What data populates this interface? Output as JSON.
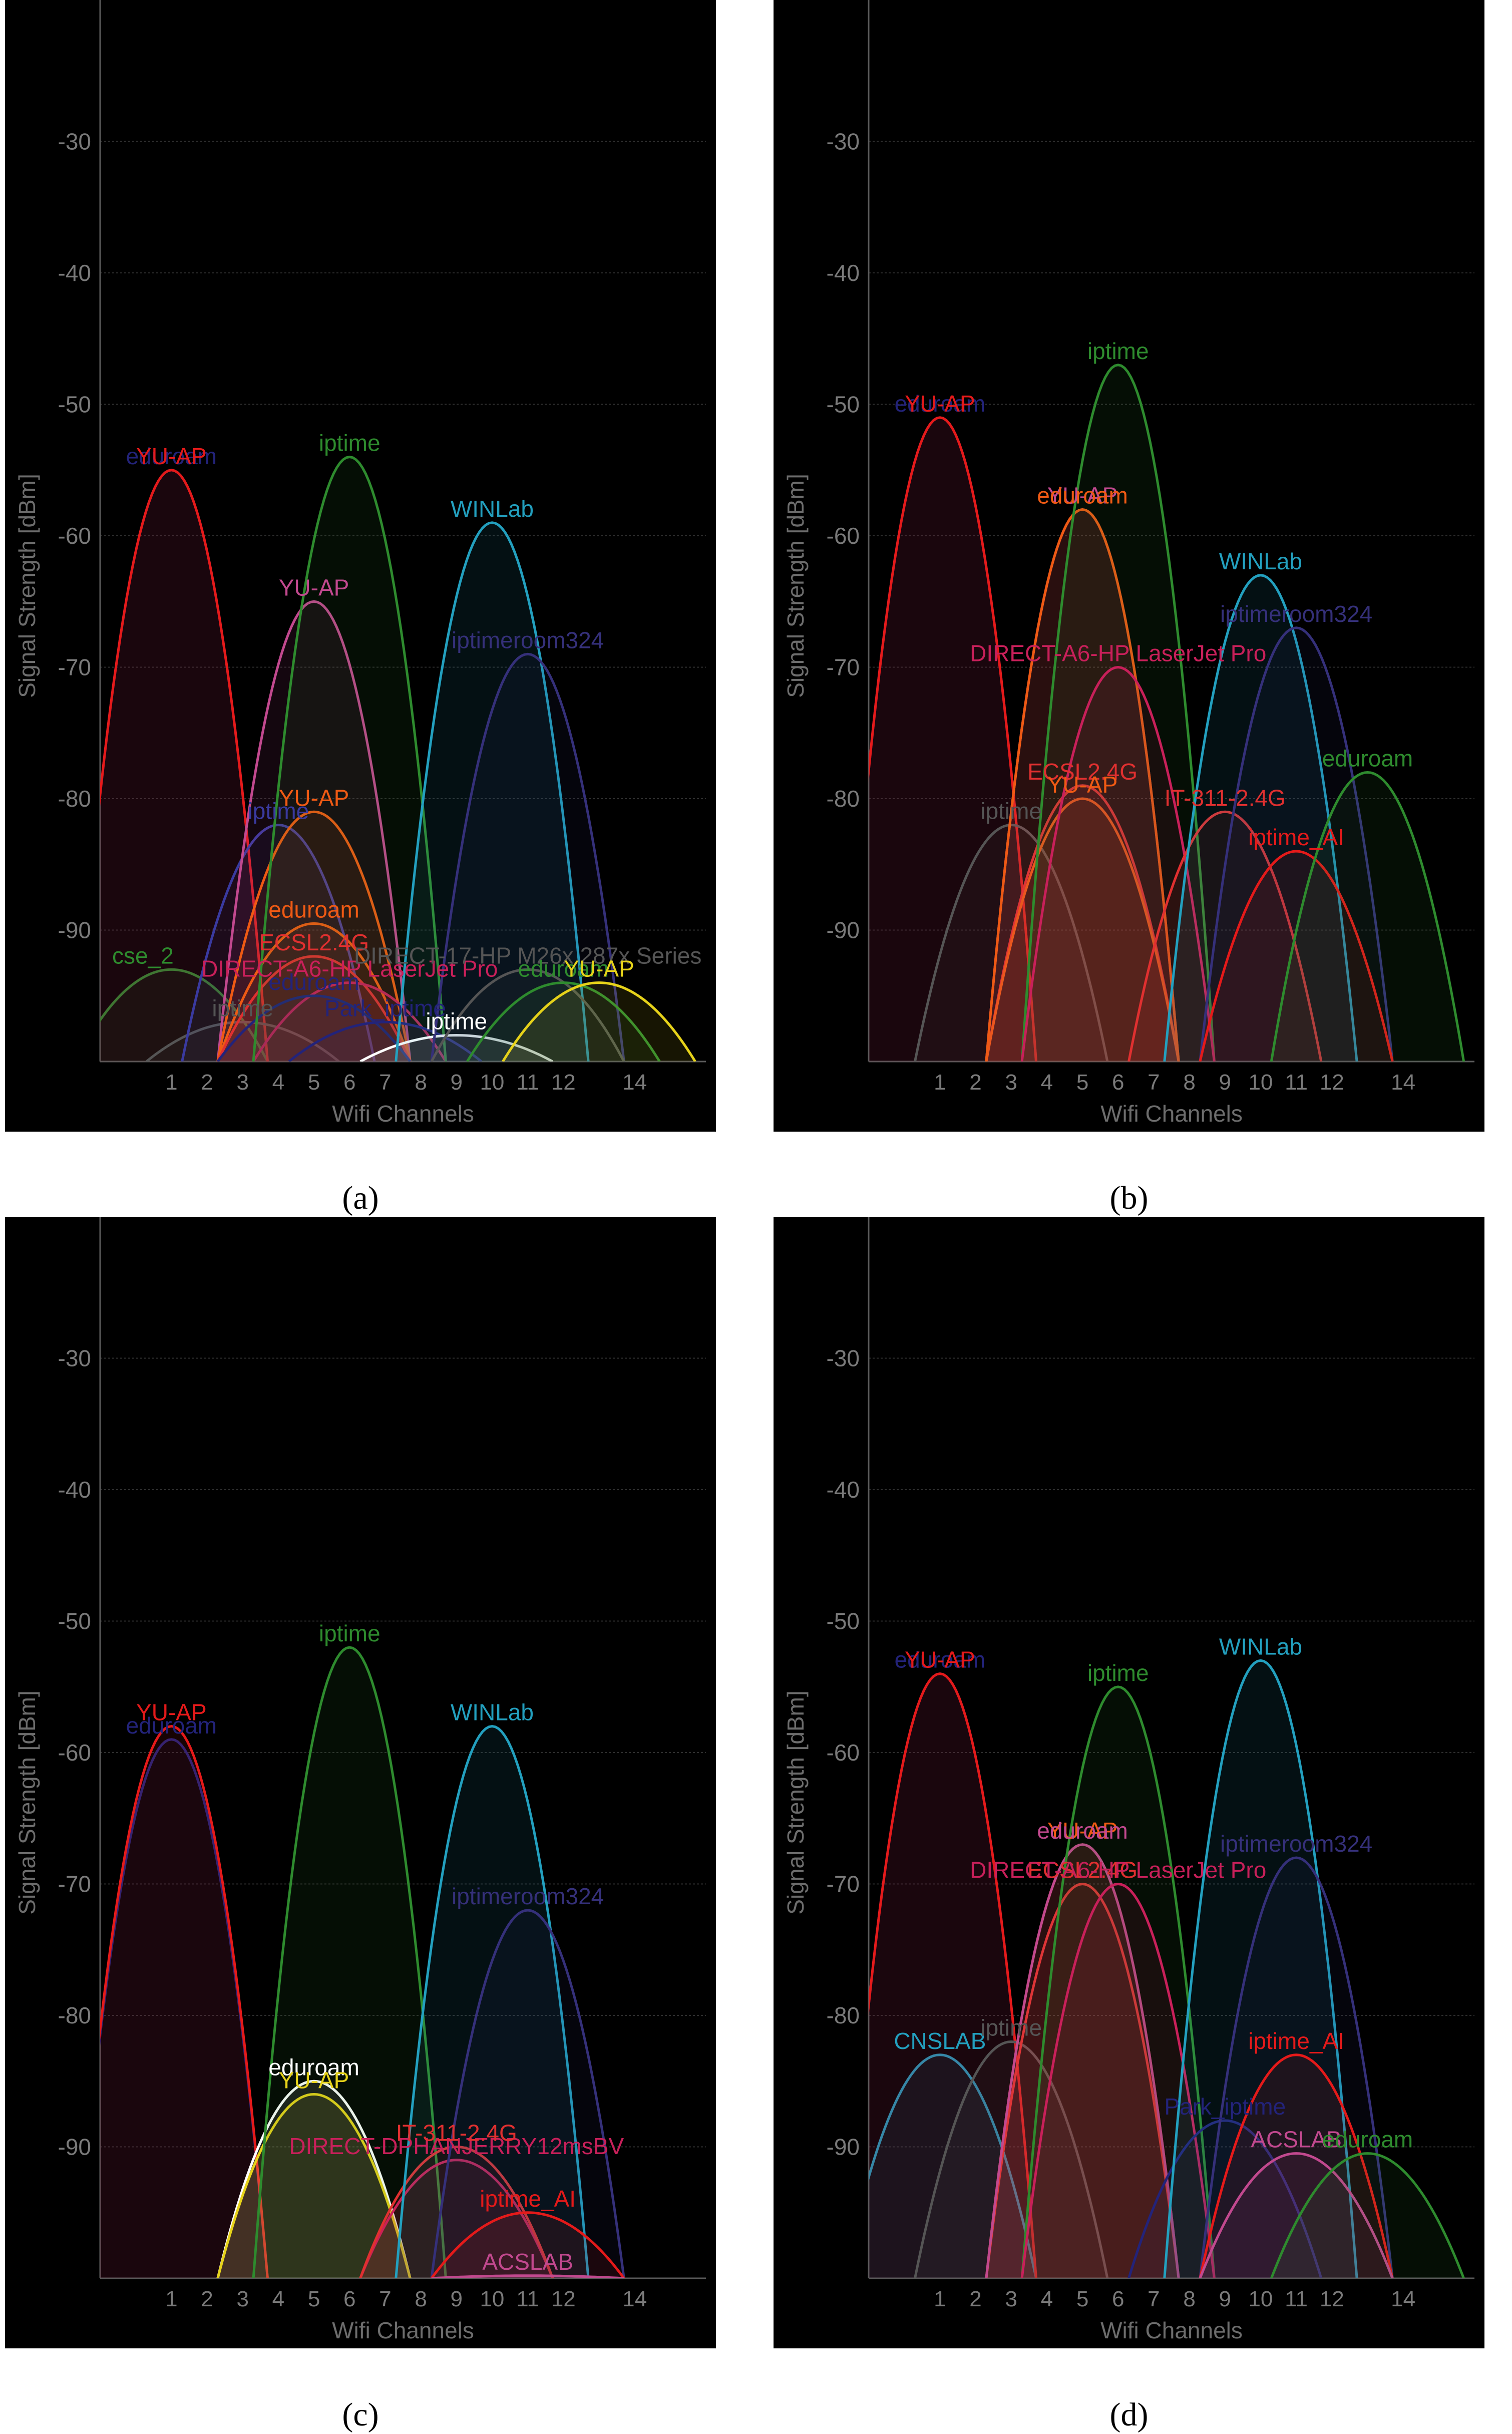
{
  "chart_data": [
    {
      "type": "area",
      "panel_label": "(a)",
      "xlabel": "Wifi Channels",
      "ylabel": "Signal Strength [dBm]",
      "x_ticks": [
        1,
        2,
        3,
        4,
        5,
        6,
        7,
        8,
        9,
        10,
        11,
        12,
        14
      ],
      "y_ticks": [
        -30,
        -40,
        -50,
        -60,
        -70,
        -80,
        -90
      ],
      "xlim": [
        -1,
        16
      ],
      "ylim": [
        -100,
        -20
      ],
      "grid": true,
      "series": [
        {
          "name": "cse_2",
          "channel": 1,
          "dbm": -93,
          "color": "#2e8b2e",
          "label_dx": -0.8,
          "label_dy": 2
        },
        {
          "name": "eduroam",
          "channel": 1,
          "dbm": -55,
          "color": "#23237a",
          "label_dy": 1
        },
        {
          "name": "YU-AP",
          "channel": 1,
          "dbm": -55,
          "color": "#e51a1a",
          "label_dy": 0
        },
        {
          "name": "iptime",
          "channel": 3,
          "dbm": -97,
          "color": "#555555",
          "label_dy": 2
        },
        {
          "name": "iptime",
          "channel": 4,
          "dbm": -82,
          "color": "#3a3aa0",
          "label_dy": 1
        },
        {
          "name": "YU-AP",
          "channel": 5,
          "dbm": -65,
          "color": "#c2498f",
          "label_dy": 1
        },
        {
          "name": "YU-AP",
          "channel": 5,
          "dbm": -81,
          "color": "#ef5a14",
          "label_dy": 1
        },
        {
          "name": "eduroam",
          "channel": 5,
          "dbm": -89.5,
          "color": "#ef5a14",
          "label_dy": 1
        },
        {
          "name": "ECSL2.4G",
          "channel": 5,
          "dbm": -92,
          "color": "#e03030",
          "label_dy": 1
        },
        {
          "name": "DIRECT-A6-HP LaserJet Pro",
          "channel": 6,
          "dbm": -94,
          "color": "#c8205a",
          "label_dy": 2
        },
        {
          "name": "eduroam",
          "channel": 5,
          "dbm": -95,
          "color": "#23237a",
          "label_dy": 2
        },
        {
          "name": "iptime",
          "channel": 6,
          "dbm": -54,
          "color": "#2e8b2e",
          "label_dy": 1
        },
        {
          "name": "Park_iptime",
          "channel": 7,
          "dbm": -97,
          "color": "#23237a",
          "label_dy": 3
        },
        {
          "name": "iptime",
          "channel": 9,
          "dbm": -98,
          "color": "#ffffff",
          "label_dy": 1
        },
        {
          "name": "WINLab",
          "channel": 10,
          "dbm": -59,
          "color": "#23a0bf",
          "label_dy": 1
        },
        {
          "name": "iptimeroom324",
          "channel": 11,
          "dbm": -69,
          "color": "#35307a",
          "label_dy": 1
        },
        {
          "name": "DIRECT-17-HP M26x 287x Series",
          "channel": 11,
          "dbm": -93,
          "color": "#555555",
          "label_dy": 2
        },
        {
          "name": "eduroam",
          "channel": 12,
          "dbm": -94,
          "color": "#2e8b2e",
          "label_dy": 1
        },
        {
          "name": "YU-AP",
          "channel": 13,
          "dbm": -94,
          "color": "#e6d21a",
          "label_dy": 1
        }
      ]
    },
    {
      "type": "area",
      "panel_label": "(b)",
      "xlabel": "Wifi Channels",
      "ylabel": "Signal Strength [dBm]",
      "x_ticks": [
        1,
        2,
        3,
        4,
        5,
        6,
        7,
        8,
        9,
        10,
        11,
        12,
        14
      ],
      "y_ticks": [
        -30,
        -40,
        -50,
        -60,
        -70,
        -80,
        -90
      ],
      "xlim": [
        -1,
        16
      ],
      "ylim": [
        -100,
        -20
      ],
      "grid": true,
      "series": [
        {
          "name": "eduroam",
          "channel": 1,
          "dbm": -51,
          "color": "#23237a",
          "label_dy": 1
        },
        {
          "name": "YU-AP",
          "channel": 1,
          "dbm": -51,
          "color": "#e51a1a",
          "label_dy": 0
        },
        {
          "name": "iptime",
          "channel": 3,
          "dbm": -82,
          "color": "#555555",
          "label_dy": 1
        },
        {
          "name": "ECSL2.4G",
          "channel": 5,
          "dbm": -79,
          "color": "#e03030",
          "label_dy": 1
        },
        {
          "name": "YU-AP",
          "channel": 5,
          "dbm": -80,
          "color": "#ef5a14",
          "label_dy": 1
        },
        {
          "name": "YU-AP",
          "channel": 5,
          "dbm": -58,
          "color": "#c2498f",
          "label_dy": 1
        },
        {
          "name": "eduroam",
          "channel": 5,
          "dbm": -58,
          "color": "#ef5a14",
          "label_dy": 1
        },
        {
          "name": "iptime",
          "channel": 6,
          "dbm": -47,
          "color": "#2e8b2e",
          "label_dy": 1
        },
        {
          "name": "DIRECT-A6-HP LaserJet Pro",
          "channel": 6,
          "dbm": -70,
          "color": "#c8205a",
          "label_dy": 1
        },
        {
          "name": "IT-311-2.4G",
          "channel": 9,
          "dbm": -81,
          "color": "#e03030",
          "label_dy": 1
        },
        {
          "name": "WINLab",
          "channel": 10,
          "dbm": -63,
          "color": "#23a0bf",
          "label_dy": 1
        },
        {
          "name": "iptimeroom324",
          "channel": 11,
          "dbm": -67,
          "color": "#35307a",
          "label_dy": 1
        },
        {
          "name": "iptime_AI",
          "channel": 11,
          "dbm": -84,
          "color": "#e51a1a",
          "label_dy": 1
        },
        {
          "name": "eduroam",
          "channel": 13,
          "dbm": -78,
          "color": "#2e8b2e",
          "label_dy": 1
        }
      ]
    },
    {
      "type": "area",
      "panel_label": "(c)",
      "xlabel": "Wifi Channels",
      "ylabel": "Signal Strength [dBm]",
      "x_ticks": [
        1,
        2,
        3,
        4,
        5,
        6,
        7,
        8,
        9,
        10,
        11,
        12,
        14
      ],
      "y_ticks": [
        -30,
        -40,
        -50,
        -60,
        -70,
        -80,
        -90
      ],
      "xlim": [
        -1,
        16
      ],
      "ylim": [
        -100,
        -20
      ],
      "grid": true,
      "series": [
        {
          "name": "eduroam",
          "channel": 1,
          "dbm": -59,
          "color": "#23237a",
          "label_dy": 1
        },
        {
          "name": "YU-AP",
          "channel": 1,
          "dbm": -58,
          "color": "#e51a1a",
          "label_dy": 0
        },
        {
          "name": "eduroam",
          "channel": 5,
          "dbm": -85,
          "color": "#ffffff",
          "label_dy": 1
        },
        {
          "name": "YU-AP",
          "channel": 5,
          "dbm": -86,
          "color": "#e6d21a",
          "label_dy": 1
        },
        {
          "name": "iptime",
          "channel": 6,
          "dbm": -52,
          "color": "#2e8b2e",
          "label_dy": 1
        },
        {
          "name": "DIRECT-DPHANJERRY12msBV",
          "channel": 9,
          "dbm": -91,
          "color": "#c8205a",
          "label_dy": 1
        },
        {
          "name": "IT-311-2.4G",
          "channel": 9,
          "dbm": -90,
          "color": "#e03030",
          "label_dy": 1
        },
        {
          "name": "WINLab",
          "channel": 10,
          "dbm": -58,
          "color": "#23a0bf",
          "label_dy": 1
        },
        {
          "name": "iptimeroom324",
          "channel": 11,
          "dbm": -72,
          "color": "#35307a",
          "label_dy": 1
        },
        {
          "name": "iptime_AI",
          "channel": 11,
          "dbm": -95,
          "color": "#e51a1a",
          "label_dy": 1
        },
        {
          "name": "ACSLAB",
          "channel": 11,
          "dbm": -99.8,
          "color": "#c2498f",
          "label_dy": 1
        }
      ]
    },
    {
      "type": "area",
      "panel_label": "(d)",
      "xlabel": "Wifi Channels",
      "ylabel": "Signal Strength [dBm]",
      "x_ticks": [
        1,
        2,
        3,
        4,
        5,
        6,
        7,
        8,
        9,
        10,
        11,
        12,
        14
      ],
      "y_ticks": [
        -30,
        -40,
        -50,
        -60,
        -70,
        -80,
        -90
      ],
      "xlim": [
        -1,
        16
      ],
      "ylim": [
        -100,
        -20
      ],
      "grid": true,
      "series": [
        {
          "name": "CNSLAB",
          "channel": 1,
          "dbm": -83,
          "color": "#23a0bf",
          "label_dy": 1
        },
        {
          "name": "eduroam",
          "channel": 1,
          "dbm": -54,
          "color": "#23237a",
          "label_dy": 1
        },
        {
          "name": "YU-AP",
          "channel": 1,
          "dbm": -54,
          "color": "#e51a1a",
          "label_dy": 1
        },
        {
          "name": "iptime",
          "channel": 3,
          "dbm": -82,
          "color": "#555555",
          "label_dy": 1
        },
        {
          "name": "ECSL2.4G",
          "channel": 5,
          "dbm": -70,
          "color": "#e03030",
          "label_dy": 1
        },
        {
          "name": "YU-AP",
          "channel": 5,
          "dbm": -67,
          "color": "#ef5a14",
          "label_dy": 1
        },
        {
          "name": "eduroam",
          "channel": 5,
          "dbm": -67,
          "color": "#c2498f",
          "label_dy": 1
        },
        {
          "name": "iptime",
          "channel": 6,
          "dbm": -55,
          "color": "#2e8b2e",
          "label_dy": 1
        },
        {
          "name": "DIRECT-A6-HP LaserJet Pro",
          "channel": 6,
          "dbm": -70,
          "color": "#c8205a",
          "label_dy": 1
        },
        {
          "name": "Park_iptime",
          "channel": 9,
          "dbm": -88,
          "color": "#23237a",
          "label_dy": 1
        },
        {
          "name": "WINLab",
          "channel": 10,
          "dbm": -53,
          "color": "#23a0bf",
          "label_dy": 1
        },
        {
          "name": "iptimeroom324",
          "channel": 11,
          "dbm": -68,
          "color": "#35307a",
          "label_dy": 1
        },
        {
          "name": "iptime_AI",
          "channel": 11,
          "dbm": -83,
          "color": "#e51a1a",
          "label_dy": 1
        },
        {
          "name": "ACSLAB",
          "channel": 11,
          "dbm": -90.5,
          "color": "#c2498f",
          "label_dy": 1
        },
        {
          "name": "eduroam",
          "channel": 13,
          "dbm": -90.5,
          "color": "#2e8b2e",
          "label_dy": 1
        }
      ]
    }
  ]
}
